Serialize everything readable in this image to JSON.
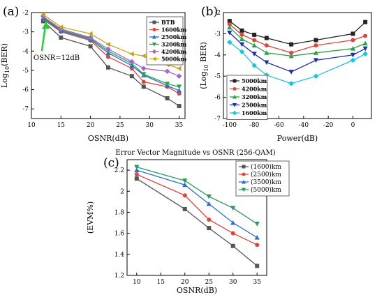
{
  "chart_data": [
    {
      "panel_label": "(a)",
      "type": "line",
      "xlabel": "OSNR(dB)",
      "ylabel": "Log10(BER)",
      "ylabel_base": "Log",
      "ylabel_sub": "10",
      "ylabel_rest": "(BER)",
      "xlim": [
        10,
        36
      ],
      "ylim": [
        -7.5,
        -2
      ],
      "xticks": [
        10,
        15,
        20,
        25,
        30,
        35
      ],
      "yticks": [
        -2,
        -3,
        -4,
        -5,
        -6,
        -7
      ],
      "grid": false,
      "legend_position": "top-right",
      "annotation": {
        "text": "OSNR=12dB",
        "x": 12,
        "y": -2.4
      },
      "series": [
        {
          "name": "BTB",
          "color": "#555555",
          "marker": "square",
          "x": [
            12,
            15,
            20,
            23,
            27,
            29,
            33,
            35
          ],
          "y": [
            -2.45,
            -3.3,
            -3.75,
            -4.85,
            -5.3,
            -5.85,
            -6.45,
            -6.85
          ]
        },
        {
          "name": "1600km",
          "color": "#e0443a",
          "marker": "circle",
          "x": [
            12,
            15,
            20,
            23,
            27,
            29,
            33,
            35
          ],
          "y": [
            -2.35,
            -3.0,
            -3.45,
            -4.3,
            -4.9,
            -5.6,
            -5.85,
            -6.2
          ]
        },
        {
          "name": "2500km",
          "color": "#2a6fc9",
          "marker": "triangle",
          "x": [
            12,
            15,
            20,
            23,
            27,
            29,
            33,
            35
          ],
          "y": [
            -2.3,
            -2.95,
            -3.4,
            -4.1,
            -4.75,
            -5.25,
            -5.8,
            -6.05
          ]
        },
        {
          "name": "3200km",
          "color": "#2aa24a",
          "marker": "tri-down",
          "x": [
            12,
            15,
            20,
            23,
            27,
            29,
            33,
            35
          ],
          "y": [
            -2.25,
            -2.9,
            -3.35,
            -4.0,
            -4.65,
            -5.2,
            -5.7,
            -5.85
          ]
        },
        {
          "name": "4200km",
          "color": "#a268c8",
          "marker": "diamond",
          "x": [
            12,
            15,
            20,
            23,
            27,
            29,
            33,
            35
          ],
          "y": [
            -2.2,
            -2.85,
            -3.3,
            -3.9,
            -4.55,
            -4.9,
            -5.05,
            -5.3
          ]
        },
        {
          "name": "5000km",
          "color": "#c9a31e",
          "marker": "tri-left",
          "x": [
            12,
            15,
            20,
            23,
            27,
            29,
            33,
            35
          ],
          "y": [
            -2.1,
            -2.75,
            -3.1,
            -3.65,
            -4.15,
            -4.25,
            -4.7,
            -4.9
          ]
        }
      ]
    },
    {
      "panel_label": "(b)",
      "type": "line",
      "xlabel": "Power(dB)",
      "ylabel": "(Log10 BER)",
      "ylabel_base": "(Log",
      "ylabel_sub": "10",
      "ylabel_rest": " BER)",
      "xlim": [
        -105,
        15
      ],
      "ylim": [
        -7,
        -2
      ],
      "xticks": [
        -100,
        -80,
        -60,
        -40,
        -20,
        0
      ],
      "yticks": [
        -2,
        -3,
        -4,
        -5,
        -6,
        -7
      ],
      "grid": false,
      "legend_position": "bottom-left",
      "series": [
        {
          "name": "5000km",
          "color": "#222222",
          "marker": "square",
          "x": [
            -100,
            -90,
            -80,
            -70,
            -50,
            -30,
            0,
            10
          ],
          "y": [
            -2.4,
            -2.85,
            -3.05,
            -3.2,
            -3.5,
            -3.3,
            -3.0,
            -2.45
          ]
        },
        {
          "name": "4200km",
          "color": "#e0443a",
          "marker": "circle",
          "x": [
            -100,
            -90,
            -80,
            -70,
            -50,
            -30,
            0,
            10
          ],
          "y": [
            -2.55,
            -3.05,
            -3.3,
            -3.55,
            -3.9,
            -3.55,
            -3.3,
            -3.1
          ]
        },
        {
          "name": "3200km",
          "color": "#2aa24a",
          "marker": "triangle",
          "x": [
            -100,
            -90,
            -80,
            -70,
            -50,
            -30,
            0,
            10
          ],
          "y": [
            -2.7,
            -3.25,
            -3.55,
            -3.9,
            -4.05,
            -3.9,
            -3.7,
            -3.45
          ]
        },
        {
          "name": "2500km",
          "color": "#1f2fa8",
          "marker": "tri-down",
          "x": [
            -100,
            -90,
            -80,
            -70,
            -50,
            -30,
            0,
            10
          ],
          "y": [
            -2.95,
            -3.5,
            -3.95,
            -4.35,
            -4.8,
            -4.25,
            -4.0,
            -3.7
          ]
        },
        {
          "name": "1600km",
          "color": "#21c2dc",
          "marker": "diamond",
          "x": [
            -100,
            -90,
            -80,
            -70,
            -50,
            -30,
            0,
            10
          ],
          "y": [
            -3.4,
            -3.85,
            -4.5,
            -4.95,
            -5.35,
            -5.0,
            -4.25,
            -3.95
          ]
        }
      ]
    },
    {
      "panel_label": "(c)",
      "type": "line",
      "title": "Error Vector Magnitude vs OSNR (256-QAM)",
      "xlabel": "OSNR(dB)",
      "ylabel": "(EVM%)",
      "xlim": [
        8,
        37
      ],
      "ylim": [
        1.2,
        2.3
      ],
      "xticks": [
        10,
        15,
        20,
        25,
        30,
        35
      ],
      "yticks": [
        1.2,
        1.4,
        1.6,
        1.8,
        2.0,
        2.2
      ],
      "grid": false,
      "legend_position": "top-right",
      "series": [
        {
          "name": "(1600)km",
          "color": "#555555",
          "marker": "square",
          "x": [
            10,
            20,
            25,
            30,
            35
          ],
          "y": [
            2.12,
            1.83,
            1.65,
            1.48,
            1.29
          ]
        },
        {
          "name": "(2500)km",
          "color": "#e0443a",
          "marker": "circle",
          "x": [
            10,
            20,
            25,
            30,
            35
          ],
          "y": [
            2.16,
            1.96,
            1.73,
            1.6,
            1.49
          ]
        },
        {
          "name": "(3500)km",
          "color": "#2a6fc9",
          "marker": "triangle",
          "x": [
            10,
            20,
            25,
            30,
            35
          ],
          "y": [
            2.2,
            2.06,
            1.88,
            1.7,
            1.56
          ]
        },
        {
          "name": "(5000)km",
          "color": "#2a9a5a",
          "marker": "tri-down",
          "x": [
            10,
            20,
            25,
            30,
            35
          ],
          "y": [
            2.23,
            2.1,
            1.95,
            1.84,
            1.69
          ]
        }
      ]
    }
  ]
}
